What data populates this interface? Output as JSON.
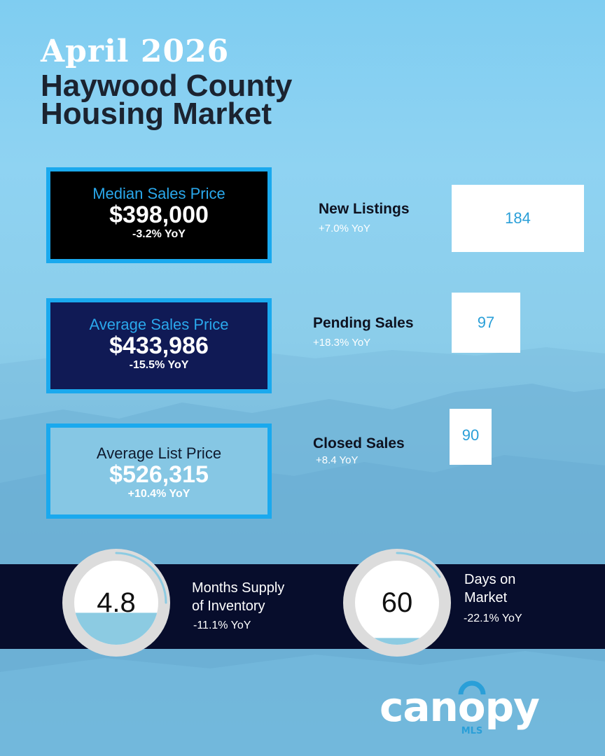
{
  "header": {
    "period": "April 2026",
    "title_line1": "Haywood County",
    "title_line2": "Housing Market"
  },
  "price_boxes": [
    {
      "label": "Median Sales Price",
      "value": "$398,000",
      "change": "-3.2% YoY"
    },
    {
      "label": "Average Sales Price",
      "value": "$433,986",
      "change": "-15.5% YoY"
    },
    {
      "label": "Average List Price",
      "value": "$526,315",
      "change": "+10.4% YoY"
    }
  ],
  "stats": [
    {
      "label": "New Listings",
      "change": "+7.0% YoY",
      "value": "184"
    },
    {
      "label": "Pending Sales",
      "change": "+18.3% YoY",
      "value": "97"
    },
    {
      "label": "Closed Sales",
      "change": "+8.4 YoY",
      "value": "90"
    }
  ],
  "gauges": [
    {
      "value": "4.8",
      "label_line1": "Months Supply",
      "label_line2": "of Inventory",
      "change": "-11.1% YoY",
      "fill_fraction": 0.38
    },
    {
      "value": "60",
      "label_line1": "Days on",
      "label_line2": "Market",
      "change": "-22.1% YoY",
      "fill_fraction": 0.08
    }
  ],
  "logo": {
    "wordmark": "canopy",
    "sub": "MLS"
  },
  "colors": {
    "accent_blue": "#1aa9ee",
    "navy": "#101a55",
    "band": "#070d2c",
    "gauge_fill": "#8ccbe2",
    "gauge_ring": "#dcdcdc"
  }
}
